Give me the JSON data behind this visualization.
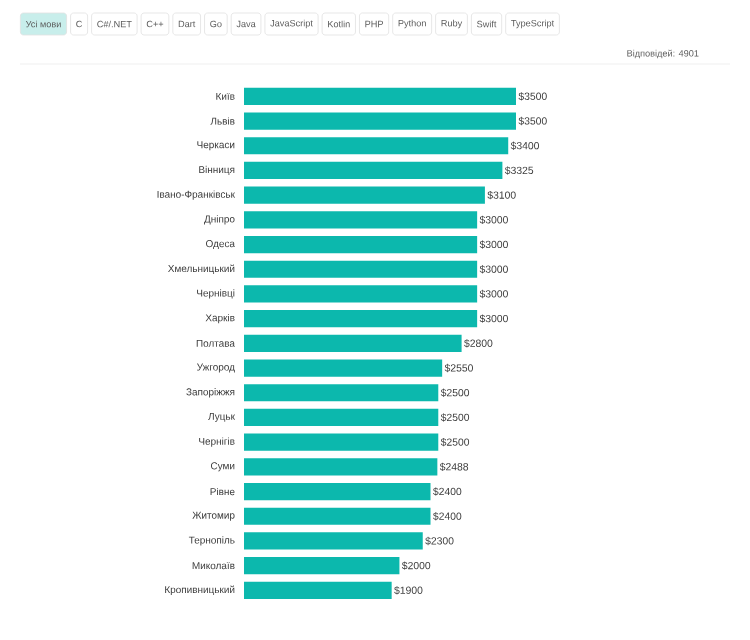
{
  "chart_data": {
    "type": "bar",
    "orientation": "horizontal",
    "color": "#0cb8ad",
    "categories": [
      "Київ",
      "Львів",
      "Черкаси",
      "Вінниця",
      "Івано-Франківськ",
      "Дніпро",
      "Одеса",
      "Хмельницький",
      "Чернівці",
      "Харків",
      "Полтава",
      "Ужгород",
      "Запоріжжя",
      "Луцьк",
      "Чернігів",
      "Суми",
      "Рівне",
      "Житомир",
      "Тернопіль",
      "Миколаїв",
      "Кропивницький"
    ],
    "values": [
      3500,
      3500,
      3400,
      3325,
      3100,
      3000,
      3000,
      3000,
      3000,
      3000,
      2800,
      2550,
      2500,
      2500,
      2500,
      2488,
      2400,
      2400,
      2300,
      2000,
      1900
    ],
    "value_labels": [
      "$3500",
      "$3500",
      "$3400",
      "$3325",
      "$3100",
      "$3000",
      "$3000",
      "$3000",
      "$3000",
      "$3000",
      "$2800",
      "$2550",
      "$2500",
      "$2500",
      "$2500",
      "$2488",
      "$2400",
      "$2400",
      "$2300",
      "$2000",
      "$1900"
    ],
    "annotations": [
      "Усі мови",
      "C",
      "C#/.NET",
      "C++",
      "Dart",
      "Go",
      "Java",
      "JavaScript",
      "Kotlin",
      "PHP",
      "Python",
      "Ruby",
      "Swift",
      "TypeScript",
      "Відповідей: 4901"
    ]
  }
}
